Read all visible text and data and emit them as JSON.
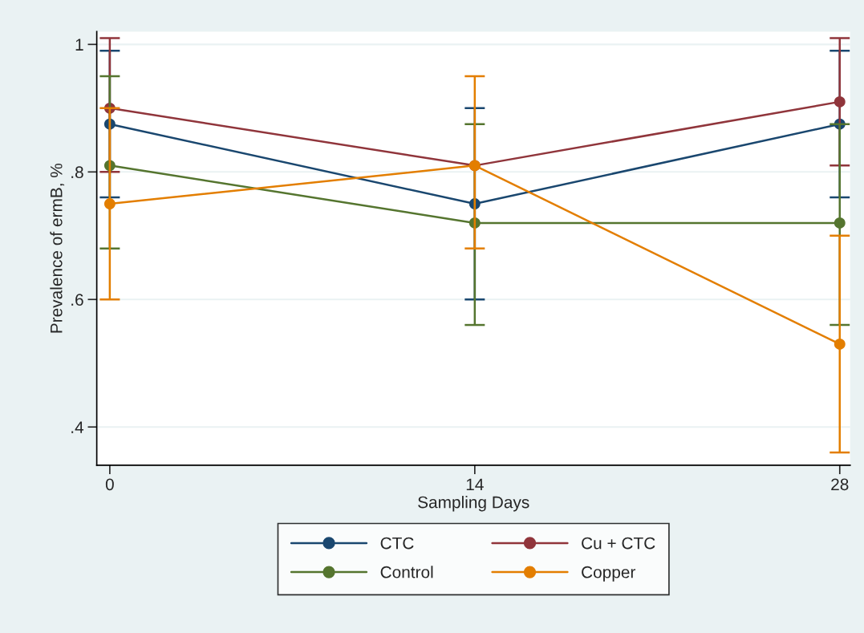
{
  "chart_data": {
    "type": "line",
    "xlabel": "Sampling Days",
    "ylabel": "Prevalence of ermB, %",
    "x": [
      0,
      14,
      28
    ],
    "series": [
      {
        "name": "CTC",
        "color": "#1a476f",
        "values": [
          0.875,
          0.75,
          0.875
        ],
        "errors": [
          [
            0.76,
            0.99
          ],
          [
            0.6,
            0.9
          ],
          [
            0.76,
            0.99
          ]
        ]
      },
      {
        "name": "Cu + CTC",
        "color": "#90353b",
        "values": [
          0.9,
          0.81,
          0.91
        ],
        "errors": [
          [
            0.8,
            1.01
          ],
          null,
          [
            0.81,
            1.01
          ]
        ]
      },
      {
        "name": "Control",
        "color": "#55752f",
        "values": [
          0.81,
          0.72,
          0.72
        ],
        "errors": [
          [
            0.68,
            0.95
          ],
          [
            0.56,
            0.875
          ],
          [
            0.56,
            0.875
          ]
        ]
      },
      {
        "name": "Copper",
        "color": "#e37e00",
        "values": [
          0.75,
          0.81,
          0.53
        ],
        "errors": [
          [
            0.6,
            0.9
          ],
          [
            0.68,
            0.95
          ],
          [
            0.36,
            0.7
          ]
        ]
      }
    ],
    "xlim": [
      -0.5,
      28.4
    ],
    "xticks": [
      0,
      14,
      28
    ],
    "ylim": [
      0.34,
      1.02
    ],
    "yticks": [
      {
        "value": 0.4,
        "label": ".4"
      },
      {
        "value": 0.6,
        "label": ".6"
      },
      {
        "value": 0.8,
        "label": ".8"
      },
      1
    ],
    "grid": "y",
    "marker": "circle",
    "line_style": "solid",
    "legend": "bottom"
  }
}
